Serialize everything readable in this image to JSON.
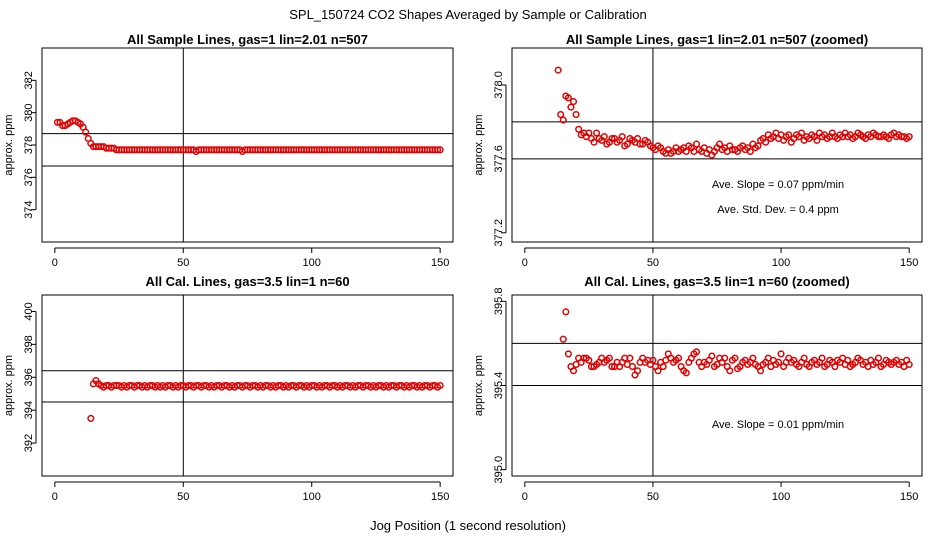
{
  "figure": {
    "title": "SPL_150724  CO2 Shapes Averaged by Sample or Calibration",
    "xlabel": "Jog Position (1 second resolution)"
  },
  "colors": {
    "points": "#e00000",
    "lines": "#000000"
  },
  "chart_data": [
    {
      "type": "scatter",
      "title": "All Sample Lines, gas=1 lin=2.01 n=507",
      "ylabel": "approx. ppm",
      "xlim": [
        -5,
        155
      ],
      "ylim": [
        372,
        384
      ],
      "xticks": [
        0,
        50,
        100,
        150
      ],
      "yticks": [
        374,
        376,
        378,
        380,
        382
      ],
      "vline": 50,
      "hlines": [
        376.7,
        378.7
      ],
      "annotations": [],
      "series": [
        {
          "x_start": 1,
          "x_step": 1,
          "values": [
            379.4,
            379.4,
            379.2,
            379.2,
            379.3,
            379.4,
            379.5,
            379.5,
            379.4,
            379.3,
            379.1,
            378.8,
            378.4,
            378.1,
            377.9,
            377.9,
            377.9,
            377.9,
            377.9,
            377.8,
            377.8,
            377.8,
            377.8,
            377.7,
            377.7,
            377.7,
            377.7,
            377.7,
            377.7,
            377.7,
            377.7,
            377.7,
            377.7,
            377.7,
            377.7,
            377.7,
            377.7,
            377.7,
            377.7,
            377.7,
            377.7,
            377.7,
            377.7,
            377.7,
            377.7,
            377.7,
            377.7,
            377.7,
            377.7,
            377.7,
            377.7,
            377.7,
            377.7,
            377.7,
            377.6,
            377.7,
            377.7,
            377.7,
            377.7,
            377.7,
            377.7,
            377.7,
            377.7,
            377.7,
            377.7,
            377.7,
            377.7,
            377.7,
            377.7,
            377.7,
            377.7,
            377.7,
            377.6,
            377.7,
            377.7,
            377.7,
            377.7,
            377.7,
            377.7,
            377.7,
            377.7,
            377.7,
            377.7,
            377.7,
            377.7,
            377.7,
            377.7,
            377.7,
            377.7,
            377.7,
            377.7,
            377.7,
            377.7,
            377.7,
            377.7,
            377.7,
            377.7,
            377.7,
            377.7,
            377.7,
            377.7,
            377.7,
            377.7,
            377.7,
            377.7,
            377.7,
            377.7,
            377.7,
            377.7,
            377.7,
            377.7,
            377.7,
            377.7,
            377.7,
            377.7,
            377.7,
            377.7,
            377.7,
            377.7,
            377.7,
            377.7,
            377.7,
            377.7,
            377.7,
            377.7,
            377.7,
            377.7,
            377.7,
            377.7,
            377.7,
            377.7,
            377.7,
            377.7,
            377.7,
            377.7,
            377.7,
            377.7,
            377.7,
            377.7,
            377.7,
            377.7,
            377.7,
            377.7,
            377.7,
            377.7,
            377.7,
            377.7,
            377.7,
            377.7,
            377.7
          ]
        }
      ]
    },
    {
      "type": "scatter",
      "title": "All Sample Lines, gas=1 lin=2.01 n=507 (zoomed)",
      "ylabel": "approx. ppm",
      "xlim": [
        -5,
        155
      ],
      "ylim": [
        377.15,
        378.2
      ],
      "xticks": [
        0,
        50,
        100,
        150
      ],
      "yticks": [
        377.2,
        377.6,
        378.0
      ],
      "vline": 50,
      "hlines": [
        377.6,
        377.8
      ],
      "annotations": [
        "Ave. Slope =  0.07  ppm/min",
        "Ave. Std. Dev. =  0.4  ppm"
      ],
      "series": [
        {
          "x_start": 13,
          "x_step": 1,
          "values": [
            378.08,
            377.84,
            377.81,
            377.94,
            377.93,
            377.88,
            377.91,
            377.84,
            377.76,
            377.73,
            377.74,
            377.72,
            377.74,
            377.71,
            377.69,
            377.74,
            377.71,
            377.7,
            377.72,
            377.68,
            377.69,
            377.71,
            377.71,
            377.69,
            377.7,
            377.72,
            377.67,
            377.68,
            377.71,
            377.7,
            377.69,
            377.71,
            377.68,
            377.68,
            377.7,
            377.69,
            377.67,
            377.66,
            377.65,
            377.67,
            377.66,
            377.64,
            377.63,
            377.65,
            377.63,
            377.64,
            377.66,
            377.64,
            377.65,
            377.66,
            377.64,
            377.67,
            377.66,
            377.64,
            377.68,
            377.65,
            377.64,
            377.66,
            377.63,
            377.65,
            377.62,
            377.64,
            377.66,
            377.68,
            377.65,
            377.66,
            377.64,
            377.67,
            377.65,
            377.65,
            377.64,
            377.66,
            377.67,
            377.65,
            377.66,
            377.64,
            377.68,
            377.66,
            377.67,
            377.7,
            377.71,
            377.69,
            377.73,
            377.71,
            377.72,
            377.74,
            377.71,
            377.73,
            377.7,
            377.72,
            377.73,
            377.69,
            377.71,
            377.73,
            377.72,
            377.74,
            377.7,
            377.72,
            377.71,
            377.73,
            377.72,
            377.7,
            377.74,
            377.72,
            377.73,
            377.71,
            377.72,
            377.74,
            377.72,
            377.71,
            377.73,
            377.72,
            377.74,
            377.72,
            377.73,
            377.71,
            377.72,
            377.74,
            377.73,
            377.72,
            377.71,
            377.73,
            377.72,
            377.74,
            377.73,
            377.72,
            377.72,
            377.73,
            377.72,
            377.71,
            377.73,
            377.74,
            377.72,
            377.73,
            377.72,
            377.72,
            377.71,
            377.72
          ]
        }
      ]
    },
    {
      "type": "scatter",
      "title": "All Cal. Lines, gas=3.5 lin=1 n=60",
      "ylabel": "approx. ppm",
      "xlim": [
        -5,
        155
      ],
      "ylim": [
        390,
        401
      ],
      "xticks": [
        0,
        50,
        100,
        150
      ],
      "yticks": [
        392,
        394,
        396,
        398,
        400
      ],
      "vline": 50,
      "hlines": [
        394.5,
        396.4
      ],
      "annotations": [],
      "series": [
        {
          "x_start": 14,
          "x_step": 1,
          "values": [
            393.5,
            395.6,
            395.8,
            395.6,
            395.5,
            395.4,
            395.5,
            395.5,
            395.4,
            395.5,
            395.5,
            395.5,
            395.4,
            395.5,
            395.4,
            395.5,
            395.5,
            395.4,
            395.5,
            395.5,
            395.4,
            395.5,
            395.4,
            395.5,
            395.5,
            395.4,
            395.5,
            395.4,
            395.5,
            395.4,
            395.5,
            395.5,
            395.4,
            395.5,
            395.4,
            395.5,
            395.5,
            395.4,
            395.5,
            395.5,
            395.4,
            395.5,
            395.5,
            395.4,
            395.5,
            395.5,
            395.4,
            395.5,
            395.4,
            395.5,
            395.5,
            395.4,
            395.5,
            395.5,
            395.4,
            395.5,
            395.4,
            395.5,
            395.5,
            395.4,
            395.5,
            395.5,
            395.4,
            395.5,
            395.5,
            395.4,
            395.5,
            395.4,
            395.5,
            395.5,
            395.4,
            395.5,
            395.4,
            395.5,
            395.5,
            395.4,
            395.5,
            395.4,
            395.5,
            395.5,
            395.4,
            395.5,
            395.5,
            395.4,
            395.5,
            395.4,
            395.5,
            395.5,
            395.4,
            395.5,
            395.4,
            395.5,
            395.5,
            395.4,
            395.5,
            395.5,
            395.4,
            395.5,
            395.4,
            395.5,
            395.5,
            395.4,
            395.5,
            395.4,
            395.5,
            395.5,
            395.4,
            395.5,
            395.5,
            395.4,
            395.5,
            395.4,
            395.5,
            395.5,
            395.4,
            395.5,
            395.4,
            395.5,
            395.5,
            395.4,
            395.5,
            395.5,
            395.4,
            395.5,
            395.4,
            395.5,
            395.5,
            395.4,
            395.5,
            395.4,
            395.5,
            395.5,
            395.4,
            395.5,
            395.5,
            395.4,
            395.5
          ]
        }
      ]
    },
    {
      "type": "scatter",
      "title": "All Cal. Lines, gas=3.5 lin=1 n=60 (zoomed)",
      "ylabel": "approx. ppm",
      "xlim": [
        -5,
        155
      ],
      "ylim": [
        394.97,
        395.83
      ],
      "xticks": [
        0,
        50,
        100,
        150
      ],
      "yticks": [
        395.0,
        395.4,
        395.8
      ],
      "vline": 50,
      "hlines": [
        395.4,
        395.6
      ],
      "annotations": [
        "Ave. Slope =  0.01  ppm/min"
      ],
      "series": [
        {
          "x_start": 15,
          "x_step": 1,
          "values": [
            395.62,
            395.75,
            395.55,
            395.49,
            395.47,
            395.5,
            395.53,
            395.51,
            395.53,
            395.53,
            395.52,
            395.49,
            395.49,
            395.5,
            395.51,
            395.53,
            395.51,
            395.52,
            395.53,
            395.49,
            395.49,
            395.51,
            395.49,
            395.51,
            395.53,
            395.5,
            395.53,
            395.49,
            395.45,
            395.47,
            395.51,
            395.53,
            395.51,
            395.52,
            395.5,
            395.52,
            395.49,
            395.47,
            395.51,
            395.49,
            395.52,
            395.55,
            395.53,
            395.51,
            395.52,
            395.53,
            395.49,
            395.47,
            395.46,
            395.51,
            395.53,
            395.55,
            395.56,
            395.51,
            395.49,
            395.51,
            395.5,
            395.52,
            395.54,
            395.49,
            395.5,
            395.53,
            395.51,
            395.53,
            395.49,
            395.47,
            395.52,
            395.53,
            395.48,
            395.49,
            395.51,
            395.52,
            395.5,
            395.51,
            395.53,
            395.5,
            395.49,
            395.47,
            395.5,
            395.51,
            395.53,
            395.49,
            395.52,
            395.5,
            395.51,
            395.55,
            395.49,
            395.51,
            395.53,
            395.51,
            395.52,
            395.5,
            395.49,
            395.51,
            395.53,
            395.5,
            395.49,
            395.51,
            395.52,
            395.5,
            395.51,
            395.53,
            395.49,
            395.5,
            395.52,
            395.51,
            395.49,
            395.52,
            395.51,
            395.53,
            395.5,
            395.52,
            395.49,
            395.5,
            395.51,
            395.53,
            395.52,
            395.5,
            395.51,
            395.49,
            395.52,
            395.5,
            395.51,
            395.53,
            395.49,
            395.5,
            395.52,
            395.51,
            395.5,
            395.51,
            395.52,
            395.5,
            395.51,
            395.49,
            395.52,
            395.5
          ]
        }
      ]
    }
  ]
}
